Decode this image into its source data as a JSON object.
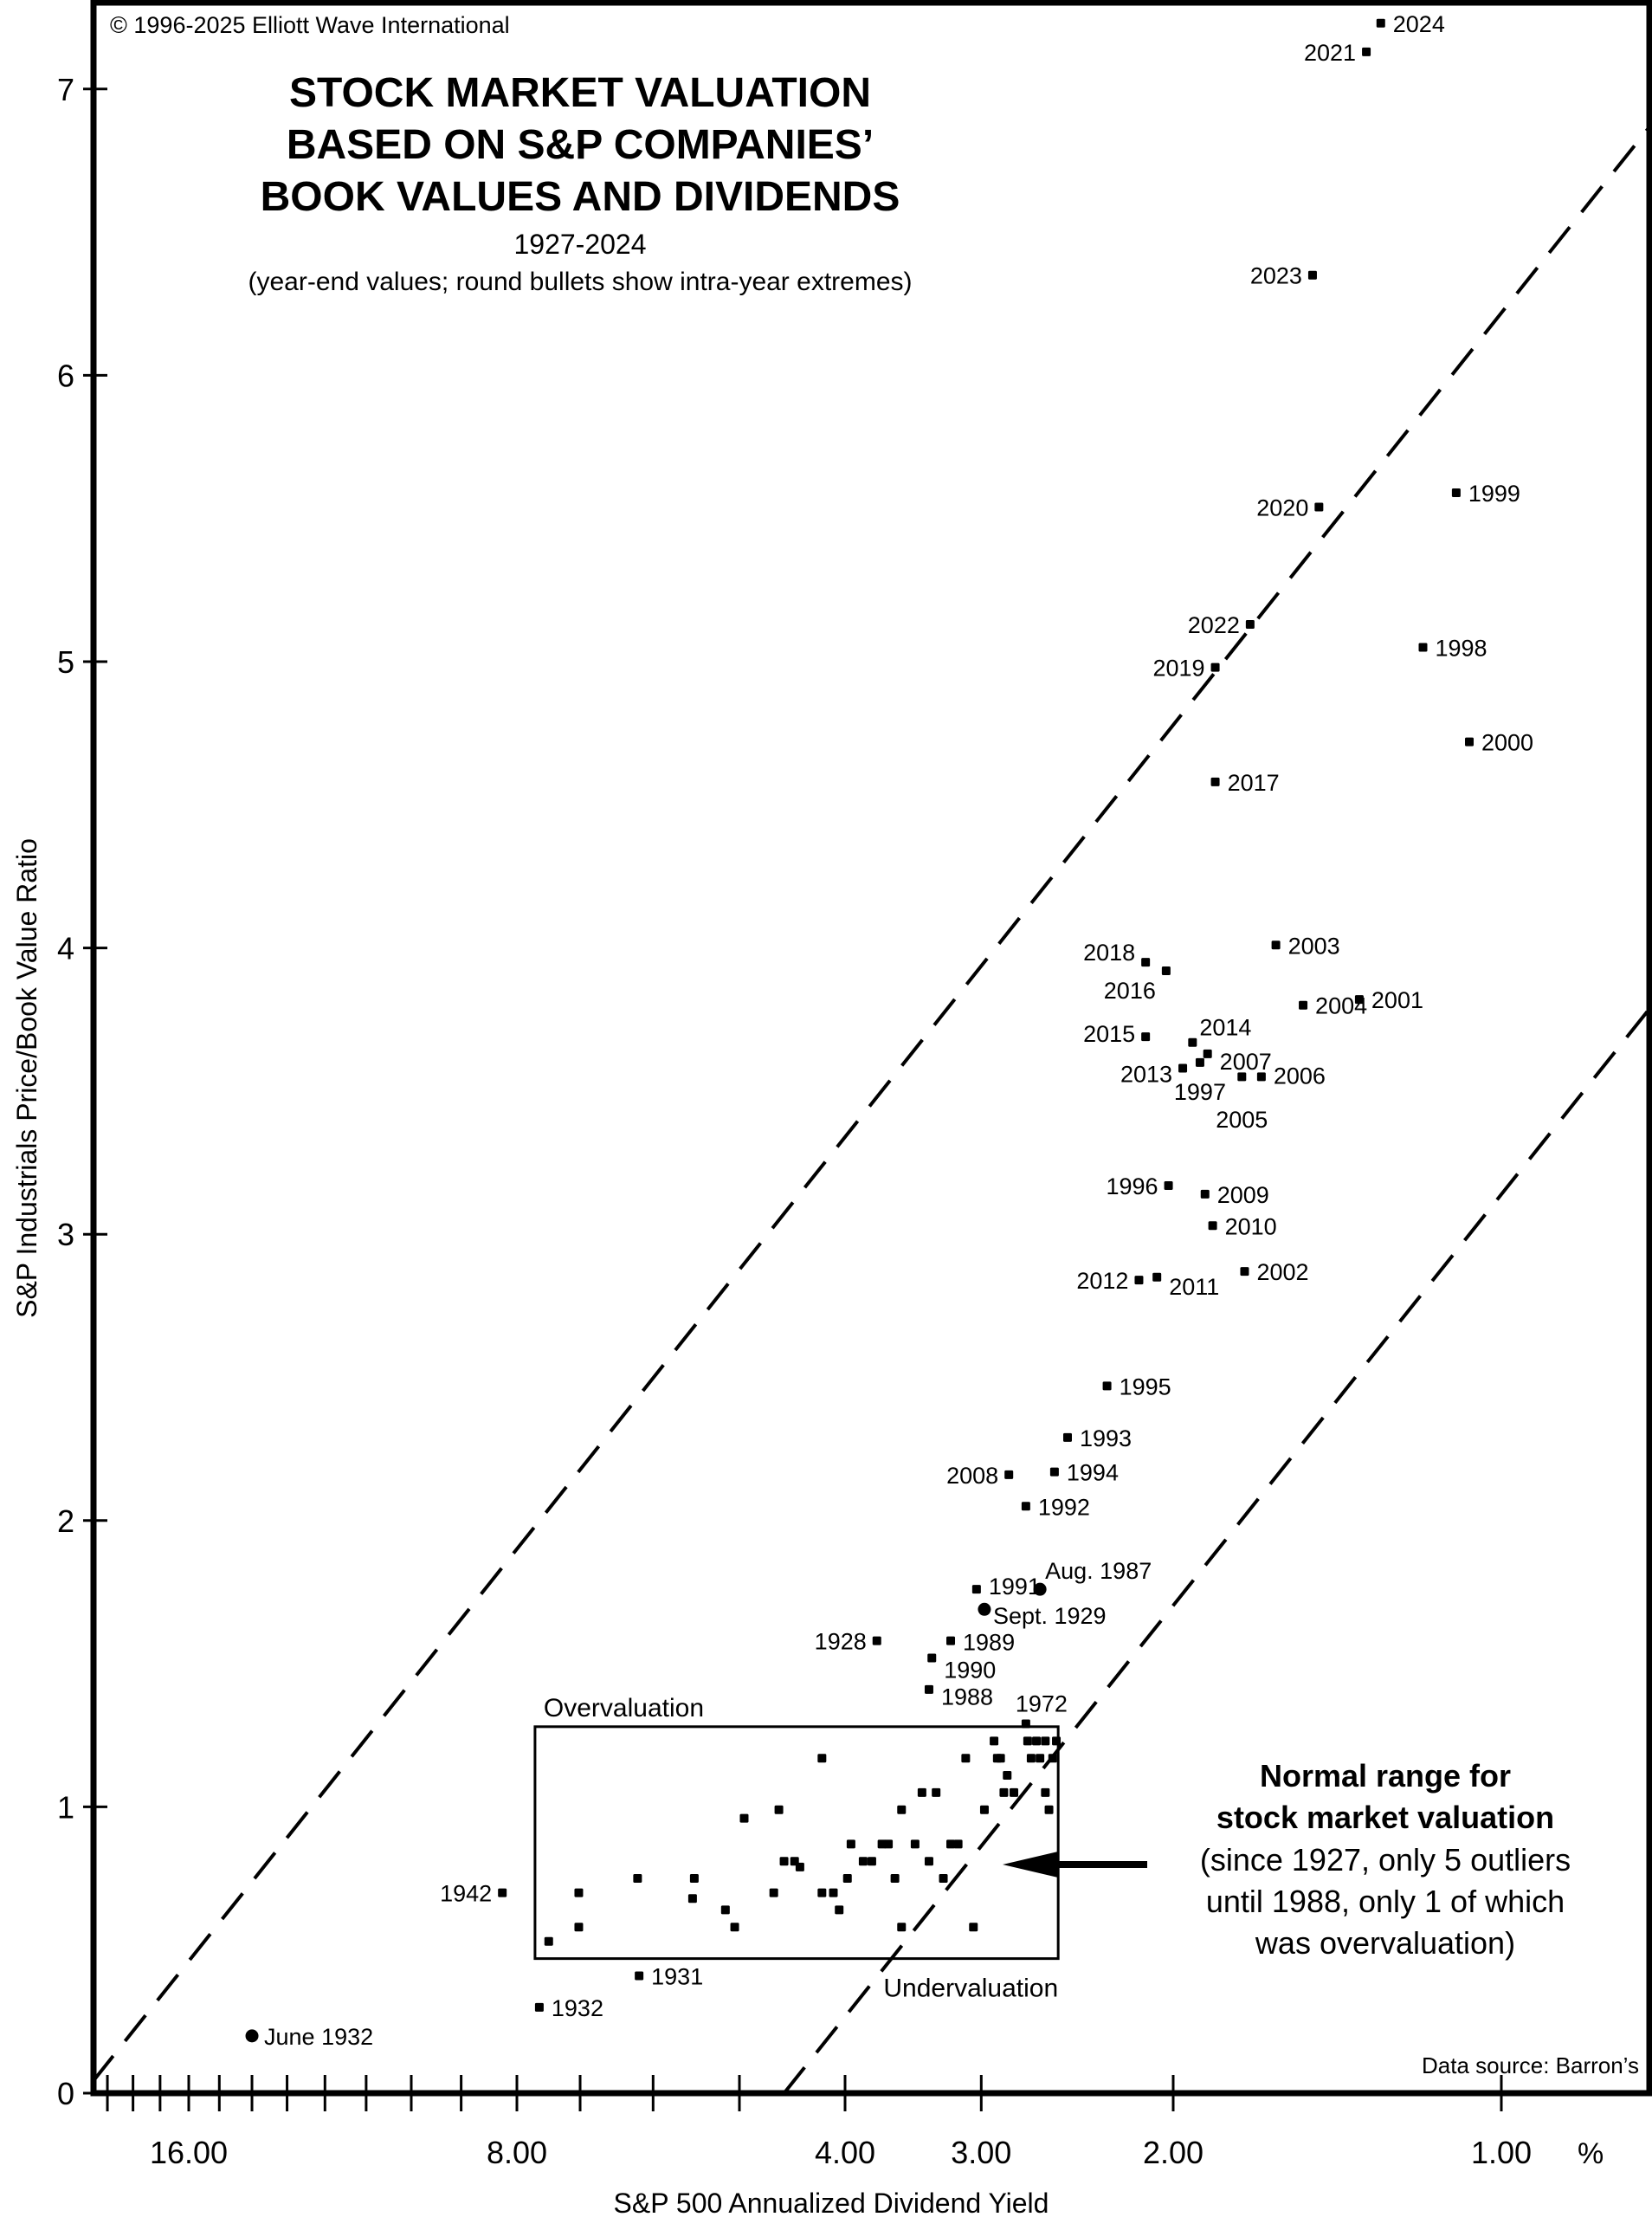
{
  "chart_data": {
    "type": "scatter",
    "title": [
      "STOCK MARKET VALUATION",
      "BASED ON S&P COMPANIES’",
      "BOOK VALUES AND DIVIDENDS"
    ],
    "subtitle": "1927-2024",
    "note": "(year-end values; round bullets show intra-year extremes)",
    "copyright": "© 1996-2025 Elliott Wave International",
    "source": "Data source: Barron’s",
    "xlabel": "S&P 500 Annualized Dividend Yield",
    "x_unit": "%",
    "x_scale": "log-reversed",
    "xlim": [
      19.6,
      0.72
    ],
    "x_tick_labels": [
      "16.00",
      "8.00",
      "4.00",
      "3.00",
      "2.00",
      "1.00"
    ],
    "x_tick_values": [
      16,
      8,
      4,
      3,
      2,
      1
    ],
    "x_minor_ticks": [
      19,
      18,
      17,
      16,
      15,
      14,
      13,
      12,
      11,
      10,
      9,
      8,
      7,
      6,
      5,
      4,
      3,
      2,
      1
    ],
    "ylabel": "S&P Industrials Price/Book Value Ratio",
    "ylim": [
      0,
      7.3
    ],
    "y_tick_labels": [
      "0",
      "1",
      "2",
      "3",
      "4",
      "5",
      "6",
      "7"
    ],
    "y_tick_values": [
      0,
      1,
      2,
      3,
      4,
      5,
      6,
      7
    ],
    "grid": false,
    "labeled_points": [
      {
        "label": "2024",
        "yield": 1.29,
        "pb": 7.23,
        "marker": "square",
        "side": "right"
      },
      {
        "label": "2021",
        "yield": 1.33,
        "pb": 7.13,
        "marker": "square",
        "side": "left"
      },
      {
        "label": "2023",
        "yield": 1.49,
        "pb": 6.35,
        "marker": "square",
        "side": "left"
      },
      {
        "label": "2020",
        "yield": 1.47,
        "pb": 5.54,
        "marker": "square",
        "side": "left"
      },
      {
        "label": "1999",
        "yield": 1.1,
        "pb": 5.59,
        "marker": "square",
        "side": "right"
      },
      {
        "label": "2022",
        "yield": 1.7,
        "pb": 5.13,
        "marker": "square",
        "side": "left"
      },
      {
        "label": "2019",
        "yield": 1.83,
        "pb": 4.98,
        "marker": "square",
        "side": "left"
      },
      {
        "label": "1998",
        "yield": 1.18,
        "pb": 5.05,
        "marker": "square",
        "side": "right"
      },
      {
        "label": "2000",
        "yield": 1.07,
        "pb": 4.72,
        "marker": "square",
        "side": "right"
      },
      {
        "label": "2017",
        "yield": 1.83,
        "pb": 4.58,
        "marker": "square",
        "side": "right"
      },
      {
        "label": "2018",
        "yield": 2.12,
        "pb": 3.95,
        "marker": "square",
        "side": "left"
      },
      {
        "label": "2016",
        "yield": 2.03,
        "pb": 3.92,
        "marker": "square",
        "side": "left"
      },
      {
        "label": "2003",
        "yield": 1.61,
        "pb": 4.01,
        "marker": "square",
        "side": "right"
      },
      {
        "label": "2004",
        "yield": 1.52,
        "pb": 3.8,
        "marker": "square",
        "side": "right"
      },
      {
        "label": "2001",
        "yield": 1.35,
        "pb": 3.82,
        "marker": "square",
        "side": "right"
      },
      {
        "label": "2015",
        "yield": 2.12,
        "pb": 3.69,
        "marker": "square",
        "side": "left"
      },
      {
        "label": "2014",
        "yield": 1.92,
        "pb": 3.67,
        "marker": "square",
        "side": "right"
      },
      {
        "label": "2007",
        "yield": 1.86,
        "pb": 3.63,
        "marker": "square",
        "side": "right"
      },
      {
        "label": "2013",
        "yield": 1.96,
        "pb": 3.58,
        "marker": "square",
        "side": "left"
      },
      {
        "label": "1997",
        "yield": 1.89,
        "pb": 3.6,
        "marker": "square",
        "side": "below"
      },
      {
        "label": "2005",
        "yield": 1.73,
        "pb": 3.55,
        "marker": "square",
        "side": "below"
      },
      {
        "label": "2006",
        "yield": 1.66,
        "pb": 3.55,
        "marker": "square",
        "side": "right"
      },
      {
        "label": "1996",
        "yield": 2.02,
        "pb": 3.17,
        "marker": "square",
        "side": "left"
      },
      {
        "label": "2009",
        "yield": 1.87,
        "pb": 3.14,
        "marker": "square",
        "side": "right"
      },
      {
        "label": "2010",
        "yield": 1.84,
        "pb": 3.03,
        "marker": "square",
        "side": "right"
      },
      {
        "label": "2012",
        "yield": 2.15,
        "pb": 2.84,
        "marker": "square",
        "side": "left"
      },
      {
        "label": "2011",
        "yield": 2.07,
        "pb": 2.85,
        "marker": "square",
        "side": "right"
      },
      {
        "label": "2002",
        "yield": 1.72,
        "pb": 2.87,
        "marker": "square",
        "side": "right"
      },
      {
        "label": "1995",
        "yield": 2.3,
        "pb": 2.47,
        "marker": "square",
        "side": "right"
      },
      {
        "label": "1993",
        "yield": 2.5,
        "pb": 2.29,
        "marker": "square",
        "side": "right"
      },
      {
        "label": "1994",
        "yield": 2.57,
        "pb": 2.17,
        "marker": "square",
        "side": "right"
      },
      {
        "label": "2008",
        "yield": 2.83,
        "pb": 2.16,
        "marker": "square",
        "side": "left"
      },
      {
        "label": "1992",
        "yield": 2.73,
        "pb": 2.05,
        "marker": "square",
        "side": "right"
      },
      {
        "label": "1991",
        "yield": 3.03,
        "pb": 1.76,
        "marker": "square",
        "side": "right"
      },
      {
        "label": "Aug. 1987",
        "yield": 2.65,
        "pb": 1.76,
        "marker": "circle",
        "side": "right-up"
      },
      {
        "label": "Sept. 1929",
        "yield": 2.98,
        "pb": 1.69,
        "marker": "circle",
        "side": "right-down"
      },
      {
        "label": "1928",
        "yield": 3.74,
        "pb": 1.58,
        "marker": "square",
        "side": "left"
      },
      {
        "label": "1989",
        "yield": 3.2,
        "pb": 1.58,
        "marker": "square",
        "side": "right"
      },
      {
        "label": "1990",
        "yield": 3.33,
        "pb": 1.52,
        "marker": "square",
        "side": "right"
      },
      {
        "label": "1988",
        "yield": 3.35,
        "pb": 1.41,
        "marker": "square",
        "side": "right"
      },
      {
        "label": "1972",
        "yield": 2.73,
        "pb": 1.29,
        "marker": "square",
        "side": "above"
      },
      {
        "label": "1942",
        "yield": 8.25,
        "pb": 0.7,
        "marker": "square",
        "side": "left"
      },
      {
        "label": "1931",
        "yield": 6.18,
        "pb": 0.41,
        "marker": "square",
        "side": "right"
      },
      {
        "label": "1932",
        "yield": 7.63,
        "pb": 0.3,
        "marker": "square",
        "side": "right"
      },
      {
        "label": "June 1932",
        "yield": 14.0,
        "pb": 0.2,
        "marker": "circle",
        "side": "right"
      }
    ],
    "box_points": [
      {
        "yield": 7.48,
        "pb": 0.53
      },
      {
        "yield": 7.02,
        "pb": 0.58
      },
      {
        "yield": 7.02,
        "pb": 0.7
      },
      {
        "yield": 6.2,
        "pb": 0.75
      },
      {
        "yield": 5.5,
        "pb": 0.75
      },
      {
        "yield": 5.52,
        "pb": 0.68
      },
      {
        "yield": 5.15,
        "pb": 0.64
      },
      {
        "yield": 5.05,
        "pb": 0.58
      },
      {
        "yield": 4.95,
        "pb": 0.96
      },
      {
        "yield": 4.55,
        "pb": 0.81
      },
      {
        "yield": 4.65,
        "pb": 0.7
      },
      {
        "yield": 4.45,
        "pb": 0.81
      },
      {
        "yield": 4.4,
        "pb": 0.79
      },
      {
        "yield": 4.2,
        "pb": 1.17
      },
      {
        "yield": 4.6,
        "pb": 0.99
      },
      {
        "yield": 4.2,
        "pb": 0.7
      },
      {
        "yield": 4.1,
        "pb": 0.7
      },
      {
        "yield": 4.05,
        "pb": 0.64
      },
      {
        "yield": 3.98,
        "pb": 0.75
      },
      {
        "yield": 3.95,
        "pb": 0.87
      },
      {
        "yield": 3.85,
        "pb": 0.81
      },
      {
        "yield": 3.78,
        "pb": 0.81
      },
      {
        "yield": 3.7,
        "pb": 0.87
      },
      {
        "yield": 3.65,
        "pb": 0.87
      },
      {
        "yield": 3.6,
        "pb": 0.75
      },
      {
        "yield": 3.55,
        "pb": 0.99
      },
      {
        "yield": 3.55,
        "pb": 0.58
      },
      {
        "yield": 3.45,
        "pb": 0.87
      },
      {
        "yield": 3.4,
        "pb": 1.05
      },
      {
        "yield": 3.35,
        "pb": 0.81
      },
      {
        "yield": 3.3,
        "pb": 1.05
      },
      {
        "yield": 3.25,
        "pb": 0.75
      },
      {
        "yield": 3.2,
        "pb": 0.87
      },
      {
        "yield": 3.15,
        "pb": 0.87
      },
      {
        "yield": 3.1,
        "pb": 1.17
      },
      {
        "yield": 3.05,
        "pb": 0.58
      },
      {
        "yield": 2.98,
        "pb": 0.99
      },
      {
        "yield": 2.92,
        "pb": 1.23
      },
      {
        "yield": 2.9,
        "pb": 1.17
      },
      {
        "yield": 2.88,
        "pb": 1.17
      },
      {
        "yield": 2.86,
        "pb": 1.05
      },
      {
        "yield": 2.84,
        "pb": 1.11
      },
      {
        "yield": 2.8,
        "pb": 1.05
      },
      {
        "yield": 2.72,
        "pb": 1.23
      },
      {
        "yield": 2.7,
        "pb": 1.17
      },
      {
        "yield": 2.67,
        "pb": 1.23
      },
      {
        "yield": 2.65,
        "pb": 1.17
      },
      {
        "yield": 2.62,
        "pb": 1.23
      },
      {
        "yield": 2.6,
        "pb": 0.99
      },
      {
        "yield": 2.58,
        "pb": 1.17
      },
      {
        "yield": 2.56,
        "pb": 1.23
      },
      {
        "yield": 2.62,
        "pb": 1.05
      }
    ],
    "reference_lines": [
      {
        "name": "upper-bound",
        "style": "dashed",
        "points": [
          {
            "yield": 19.6,
            "pb": 0.04
          },
          {
            "yield": 0.72,
            "pb": 6.9
          }
        ]
      },
      {
        "name": "lower-bound",
        "style": "dashed",
        "points": [
          {
            "yield": 4.55,
            "pb": 0.0
          },
          {
            "yield": 0.72,
            "pb": 3.82
          }
        ]
      }
    ],
    "range_box": {
      "yield_range": [
        7.7,
        2.55
      ],
      "pb_range": [
        0.47,
        1.28
      ],
      "top_label": "Overvaluation",
      "bottom_label": "Undervaluation"
    },
    "annotation": {
      "heading": [
        "Normal range for",
        "stock market valuation"
      ],
      "body": [
        "(since 1927, only 5 outliers",
        "until 1988, only 1 of which",
        "was overvaluation)"
      ]
    }
  }
}
